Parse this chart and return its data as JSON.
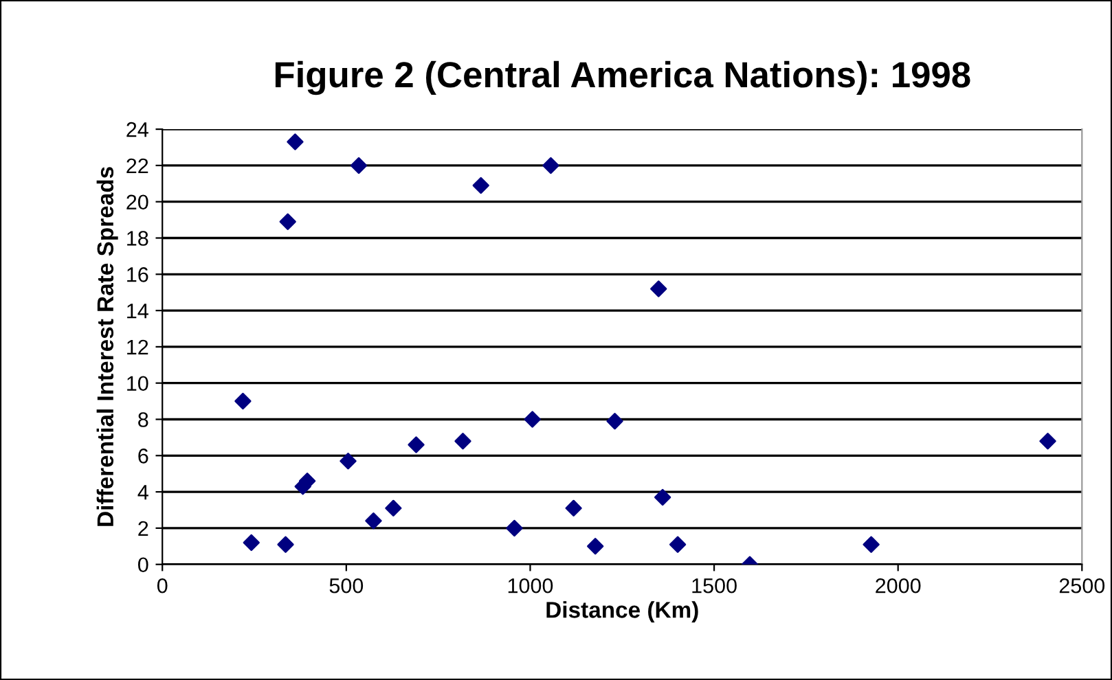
{
  "chart_data": {
    "type": "scatter",
    "title": "Figure 2 (Central America Nations): 1998",
    "xlabel": "Distance (Km)",
    "ylabel": "Differential Interest Rate Spreads",
    "x": [
      219,
      242,
      335,
      341,
      361,
      382,
      394,
      505,
      534,
      574,
      628,
      690,
      817,
      866,
      957,
      1006,
      1056,
      1118,
      1177,
      1230,
      1349,
      1360,
      1401,
      1597,
      1927,
      2407
    ],
    "series": [
      {
        "color": "#000080",
        "values": [
          9.0,
          1.2,
          1.1,
          18.9,
          23.3,
          4.3,
          4.6,
          5.7,
          22.0,
          2.4,
          3.1,
          6.6,
          6.8,
          20.9,
          2.0,
          8.0,
          22.0,
          3.1,
          1.0,
          7.9,
          15.2,
          3.7,
          1.1,
          0,
          1.1,
          6.8
        ]
      }
    ],
    "xlim": [
      0,
      2500
    ],
    "xticks": [
      0,
      500,
      1000,
      1500,
      2000,
      2500
    ],
    "ylim": [
      0,
      24
    ],
    "yticks": [
      0,
      2,
      4,
      6,
      8,
      10,
      12,
      14,
      16,
      18,
      20,
      22,
      24
    ],
    "grid": "y",
    "legend": false,
    "marker": "diamond"
  }
}
